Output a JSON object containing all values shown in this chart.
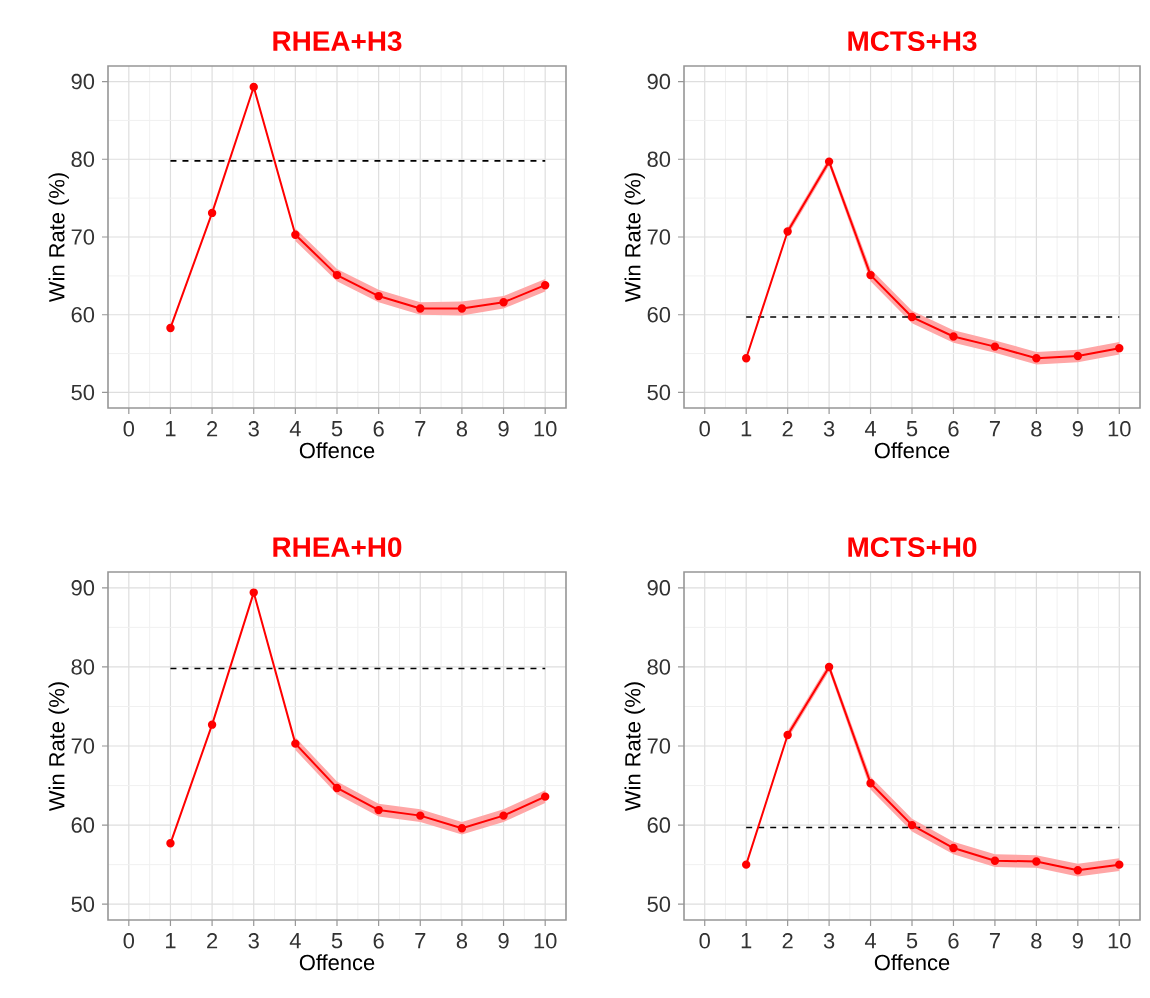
{
  "chart_data": [
    {
      "type": "line",
      "title": "RHEA+H3",
      "xlabel": "Offence",
      "ylabel": "Win Rate (%)",
      "x": [
        1,
        2,
        3,
        4,
        5,
        6,
        7,
        8,
        9,
        10
      ],
      "series": [
        {
          "color": "#ff0000",
          "values": [
            58.3,
            73.1,
            89.3,
            70.3,
            65.1,
            62.4,
            60.8,
            60.8,
            61.6,
            63.8
          ],
          "lower": [
            null,
            null,
            null,
            69.5,
            64.3,
            61.6,
            60.0,
            59.9,
            60.8,
            63.0
          ],
          "upper": [
            null,
            null,
            null,
            71.1,
            65.9,
            63.2,
            61.6,
            61.7,
            62.4,
            64.6
          ]
        }
      ],
      "ref_lines": [
        {
          "axis": "y",
          "value": 79.8,
          "color": "#000000",
          "line_style": "dashed"
        }
      ],
      "xlim": [
        -0.5,
        10.5
      ],
      "ylim": [
        48,
        92
      ],
      "xticks": [
        0,
        1,
        2,
        3,
        4,
        5,
        6,
        7,
        8,
        9,
        10
      ],
      "yticks": [
        50,
        60,
        70,
        80,
        90
      ],
      "grid": true,
      "marker": "circle",
      "line_style": "solid"
    },
    {
      "type": "line",
      "title": "MCTS+H3",
      "xlabel": "Offence",
      "ylabel": "Win Rate (%)",
      "x": [
        1,
        2,
        3,
        4,
        5,
        6,
        7,
        8,
        9,
        10
      ],
      "series": [
        {
          "color": "#ff0000",
          "values": [
            54.4,
            70.7,
            79.7,
            65.1,
            59.7,
            57.2,
            55.9,
            54.4,
            54.7,
            55.7
          ],
          "lower": [
            null,
            70.2,
            79.2,
            64.3,
            58.9,
            56.4,
            55.1,
            53.6,
            53.9,
            54.9
          ],
          "upper": [
            null,
            71.2,
            80.2,
            65.9,
            60.5,
            58.0,
            56.7,
            55.2,
            55.5,
            56.5
          ]
        }
      ],
      "ref_lines": [
        {
          "axis": "y",
          "value": 59.7,
          "color": "#000000",
          "line_style": "dashed"
        }
      ],
      "xlim": [
        -0.5,
        10.5
      ],
      "ylim": [
        48,
        92
      ],
      "xticks": [
        0,
        1,
        2,
        3,
        4,
        5,
        6,
        7,
        8,
        9,
        10
      ],
      "yticks": [
        50,
        60,
        70,
        80,
        90
      ],
      "grid": true,
      "marker": "circle",
      "line_style": "solid"
    },
    {
      "type": "line",
      "title": "RHEA+H0",
      "xlabel": "Offence",
      "ylabel": "Win Rate (%)",
      "x": [
        1,
        2,
        3,
        4,
        5,
        6,
        7,
        8,
        9,
        10
      ],
      "series": [
        {
          "color": "#ff0000",
          "values": [
            57.7,
            72.7,
            89.4,
            70.3,
            64.7,
            61.9,
            61.2,
            59.6,
            61.2,
            63.6
          ],
          "lower": [
            null,
            null,
            null,
            69.5,
            63.9,
            61.1,
            60.4,
            58.8,
            60.4,
            62.8
          ],
          "upper": [
            null,
            null,
            null,
            71.1,
            65.5,
            62.7,
            62.0,
            60.4,
            62.0,
            64.4
          ]
        }
      ],
      "ref_lines": [
        {
          "axis": "y",
          "value": 79.8,
          "color": "#000000",
          "line_style": "dashed"
        }
      ],
      "xlim": [
        -0.5,
        10.5
      ],
      "ylim": [
        48,
        92
      ],
      "xticks": [
        0,
        1,
        2,
        3,
        4,
        5,
        6,
        7,
        8,
        9,
        10
      ],
      "yticks": [
        50,
        60,
        70,
        80,
        90
      ],
      "grid": true,
      "marker": "circle",
      "line_style": "solid"
    },
    {
      "type": "line",
      "title": "MCTS+H0",
      "xlabel": "Offence",
      "ylabel": "Win Rate (%)",
      "x": [
        1,
        2,
        3,
        4,
        5,
        6,
        7,
        8,
        9,
        10
      ],
      "series": [
        {
          "color": "#ff0000",
          "values": [
            55.0,
            71.4,
            80.0,
            65.3,
            60.0,
            57.1,
            55.5,
            55.4,
            54.3,
            55.0
          ],
          "lower": [
            null,
            70.9,
            79.5,
            64.5,
            59.2,
            56.3,
            54.7,
            54.6,
            53.5,
            54.2
          ],
          "upper": [
            null,
            71.9,
            80.5,
            66.1,
            60.8,
            57.9,
            56.3,
            56.2,
            55.1,
            55.8
          ]
        }
      ],
      "ref_lines": [
        {
          "axis": "y",
          "value": 59.7,
          "color": "#000000",
          "line_style": "dashed"
        }
      ],
      "xlim": [
        -0.5,
        10.5
      ],
      "ylim": [
        48,
        92
      ],
      "xticks": [
        0,
        1,
        2,
        3,
        4,
        5,
        6,
        7,
        8,
        9,
        10
      ],
      "yticks": [
        50,
        60,
        70,
        80,
        90
      ],
      "grid": true,
      "marker": "circle",
      "line_style": "solid"
    }
  ]
}
